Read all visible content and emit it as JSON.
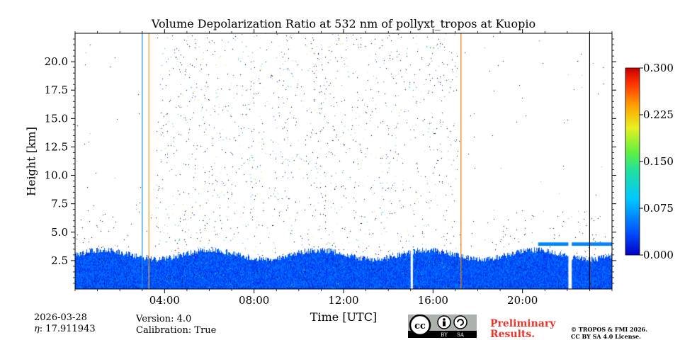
{
  "chart_data": {
    "type": "heatmap",
    "title": "Volume Depolarization Ratio at 532 nm of pollyxt_tropos at Kuopio",
    "xlabel": "Time [UTC]",
    "ylabel": "Height [km]",
    "xlim": [
      0,
      24
    ],
    "ylim": [
      0,
      22.5
    ],
    "x_ticks": [
      4,
      8,
      12,
      16,
      20
    ],
    "x_tick_labels": [
      "04:00",
      "08:00",
      "12:00",
      "16:00",
      "20:00"
    ],
    "y_ticks": [
      2.5,
      5.0,
      7.5,
      10.0,
      12.5,
      15.0,
      17.5,
      20.0
    ],
    "y_tick_labels": [
      "2.5",
      "5.0",
      "7.5",
      "10.0",
      "12.5",
      "15.0",
      "17.5",
      "20.0"
    ],
    "colorbar": {
      "min": 0.0,
      "max": 0.3,
      "ticks": [
        0.0,
        0.075,
        0.15,
        0.225,
        0.3
      ],
      "tick_labels": [
        "0.000",
        "0.075",
        "0.150",
        "0.225",
        "0.300"
      ],
      "colormap": "jet"
    },
    "regions": [
      {
        "name": "near-surface aerosol layer",
        "t_start": 0,
        "t_end": 24,
        "h_top_km": 3.0,
        "value": 0.02
      },
      {
        "name": "high-noise period",
        "t_start": 3.6,
        "t_end": 17.1,
        "h_top_km": 22.5,
        "value": "noise 0.0-0.3"
      },
      {
        "name": "elevated layer",
        "t_start": 20.7,
        "t_end": 24,
        "h_bottom_km": 3.8,
        "h_top_km": 4.1,
        "value": 0.06
      }
    ],
    "data_gaps_utc": [
      [
        15.0,
        15.1
      ],
      [
        22.05,
        22.2
      ]
    ],
    "vertical_lines_utc": [
      {
        "t": 3.0,
        "color": "#1f8fe0"
      },
      {
        "t": 3.3,
        "color": "#f0a020"
      },
      {
        "t": 17.25,
        "color": "#f08010"
      },
      {
        "t": 23.0,
        "color": "#000000"
      }
    ]
  },
  "footer": {
    "date": "2026-03-28",
    "eta": ": 17.911943",
    "version": "Version: 4.0",
    "calibration": "Calibration: True",
    "license_badge": "cc-by-sa-icon",
    "prelim_line1": "Preliminary",
    "prelim_line2": "Results.",
    "copyright_line1": "© TROPOS & FMI 2026.",
    "copyright_line2": "CC BY SA 4.0 License."
  }
}
